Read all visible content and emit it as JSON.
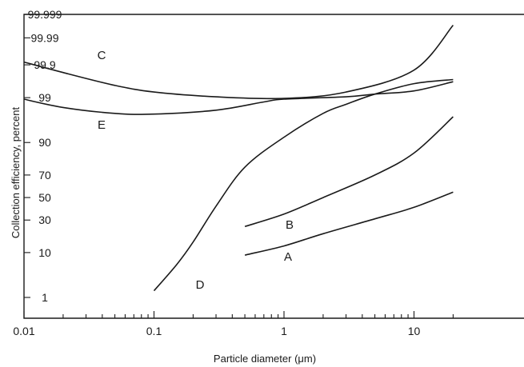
{
  "chart_data": {
    "type": "line",
    "title": "",
    "xlabel": "Particle diameter (μm)",
    "ylabel": "Collection efficiency, percent",
    "x_scale": "log",
    "y_scale": "probability",
    "xlim": [
      0.01,
      25
    ],
    "ylim": [
      0.5,
      99.999
    ],
    "x_ticks": [
      {
        "value": 0.01,
        "label": "0.01"
      },
      {
        "value": 0.1,
        "label": "0.1"
      },
      {
        "value": 1,
        "label": "1"
      },
      {
        "value": 10,
        "label": "10"
      }
    ],
    "y_ticks": [
      {
        "value": 99.999,
        "label": "99.999"
      },
      {
        "value": 99.99,
        "label": "99.99"
      },
      {
        "value": 99.9,
        "label": "99.9"
      },
      {
        "value": 99,
        "label": "99"
      },
      {
        "value": 90,
        "label": "90"
      },
      {
        "value": 70,
        "label": "70"
      },
      {
        "value": 50,
        "label": "50"
      },
      {
        "value": 30,
        "label": "30"
      },
      {
        "value": 10,
        "label": "10"
      },
      {
        "value": 1,
        "label": "1"
      }
    ],
    "grid": false,
    "series": [
      {
        "name": "C",
        "points": [
          [
            0.01,
            99.92
          ],
          [
            0.02,
            99.82
          ],
          [
            0.05,
            99.55
          ],
          [
            0.1,
            99.3
          ],
          [
            0.3,
            99.05
          ],
          [
            1,
            98.95
          ],
          [
            3,
            99.3
          ],
          [
            10,
            99.85
          ],
          [
            20,
            99.997
          ]
        ]
      },
      {
        "name": "E",
        "points": [
          [
            0.01,
            98.9
          ],
          [
            0.02,
            98.2
          ],
          [
            0.05,
            97.5
          ],
          [
            0.1,
            97.4
          ],
          [
            0.3,
            97.9
          ],
          [
            0.7,
            98.7
          ],
          [
            1,
            98.9
          ],
          [
            3,
            99.05
          ],
          [
            5,
            99.2
          ],
          [
            10,
            99.35
          ],
          [
            20,
            99.65
          ]
        ]
      },
      {
        "name": "D",
        "points": [
          [
            0.1,
            1.5
          ],
          [
            0.15,
            6
          ],
          [
            0.2,
            15
          ],
          [
            0.3,
            42
          ],
          [
            0.5,
            76
          ],
          [
            1,
            92
          ],
          [
            2,
            97.5
          ],
          [
            3,
            98.5
          ],
          [
            5,
            99.2
          ],
          [
            10,
            99.6
          ],
          [
            20,
            99.7
          ]
        ]
      },
      {
        "name": "B",
        "points": [
          [
            0.5,
            25
          ],
          [
            1,
            35
          ],
          [
            2,
            50
          ],
          [
            5,
            70
          ],
          [
            10,
            85
          ],
          [
            20,
            97
          ]
        ]
      },
      {
        "name": "A",
        "points": [
          [
            0.5,
            9
          ],
          [
            1,
            13
          ],
          [
            2,
            20
          ],
          [
            5,
            31
          ],
          [
            10,
            41
          ],
          [
            20,
            55
          ]
        ]
      }
    ]
  }
}
